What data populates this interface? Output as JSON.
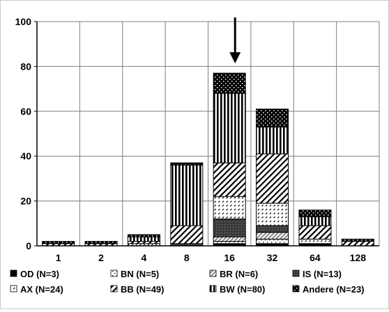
{
  "chart_data": {
    "type": "bar",
    "stacked": true,
    "categories": [
      "1",
      "2",
      "4",
      "8",
      "16",
      "32",
      "64",
      "128"
    ],
    "ylim": [
      0,
      100
    ],
    "yticks": [
      0,
      20,
      40,
      60,
      80,
      100
    ],
    "grid": true,
    "legend_position": "bottom",
    "annotation": "arrow pointing down at bar 16",
    "series": [
      {
        "name": "OD (N=3)",
        "pattern": "solid-black",
        "values": [
          0,
          0,
          0,
          0,
          1,
          1,
          1,
          0
        ]
      },
      {
        "name": "BN (N=5)",
        "pattern": "sparse-dots",
        "values": [
          0,
          0,
          0,
          0,
          1,
          2,
          0,
          0
        ]
      },
      {
        "name": "BR (N=6)",
        "pattern": "fine-diagonal-grey",
        "values": [
          0,
          0,
          0,
          0,
          2,
          3,
          0,
          0
        ]
      },
      {
        "name": "IS (N=13)",
        "pattern": "dark-grey-dots",
        "values": [
          0,
          0,
          0,
          1,
          8,
          3,
          0,
          0
        ]
      },
      {
        "name": "AX (N=24)",
        "pattern": "dashed-diagonal",
        "values": [
          0,
          0,
          1,
          0,
          10,
          10,
          2,
          0
        ]
      },
      {
        "name": "BB (N=49)",
        "pattern": "wide-diagonal",
        "values": [
          1,
          1,
          1,
          8,
          15,
          22,
          6,
          2
        ]
      },
      {
        "name": "BW (N=80)",
        "pattern": "vertical-stripes",
        "values": [
          0,
          0,
          2,
          27,
          31,
          12,
          4,
          0
        ]
      },
      {
        "name": "Andere (N=23)",
        "pattern": "black-checker",
        "values": [
          1,
          1,
          1,
          1,
          9,
          8,
          3,
          1
        ]
      }
    ],
    "colors": {
      "axis": "#000000",
      "grid": "#7f7f7f",
      "frame": "#c8c8c8"
    }
  }
}
